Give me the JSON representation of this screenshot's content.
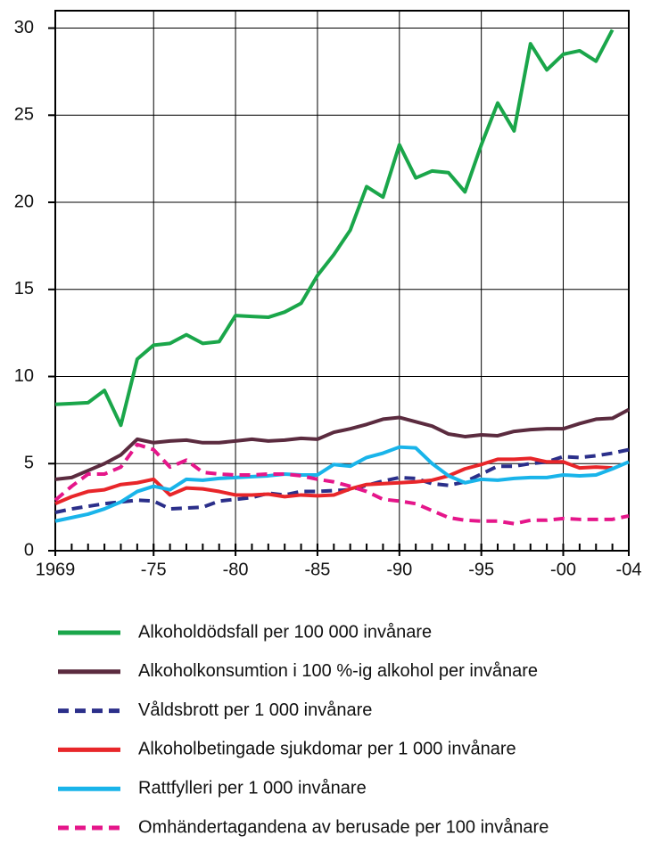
{
  "chart_data": {
    "type": "line",
    "x": [
      1969,
      1970,
      1971,
      1972,
      1973,
      1974,
      1975,
      1976,
      1977,
      1978,
      1979,
      1980,
      1981,
      1982,
      1983,
      1984,
      1985,
      1986,
      1987,
      1988,
      1989,
      1990,
      1991,
      1992,
      1993,
      1994,
      1995,
      1996,
      1997,
      1998,
      1999,
      2000,
      2001,
      2002,
      2003,
      2004
    ],
    "xlim": [
      1969,
      2004
    ],
    "xticks": [
      1969,
      {
        "value": 1975,
        "label": "-75"
      },
      {
        "value": 1980,
        "label": "-80"
      },
      {
        "value": 1985,
        "label": "-85"
      },
      {
        "value": 1990,
        "label": "-90"
      },
      {
        "value": 1995,
        "label": "-95"
      },
      {
        "value": 2000,
        "label": "-00"
      },
      {
        "value": 2004,
        "label": "-04"
      }
    ],
    "ylim": [
      0,
      31
    ],
    "yticks": [
      0,
      5,
      10,
      15,
      20,
      25,
      30
    ],
    "grid": true,
    "series": [
      {
        "name": "Alkoholdödsfall per 100 000 invånare",
        "color": "#1aa64a",
        "dashed": false,
        "values": [
          8.4,
          8.45,
          8.5,
          9.2,
          7.2,
          11.0,
          11.8,
          11.9,
          12.4,
          11.9,
          12.0,
          13.5,
          13.45,
          13.4,
          13.7,
          14.2,
          15.8,
          17.0,
          18.4,
          20.9,
          20.3,
          23.3,
          21.4,
          21.8,
          21.7,
          20.6,
          23.3,
          25.7,
          24.1,
          29.1,
          27.6,
          28.5,
          28.7,
          28.1,
          29.9,
          null
        ]
      },
      {
        "name": "Alkoholkonsumtion i 100 %-ig alkohol per invånare",
        "color": "#5b2b3f",
        "dashed": false,
        "values": [
          4.1,
          4.2,
          4.6,
          5.0,
          5.5,
          6.4,
          6.2,
          6.3,
          6.35,
          6.2,
          6.2,
          6.3,
          6.4,
          6.3,
          6.35,
          6.45,
          6.4,
          6.8,
          7.0,
          7.25,
          7.55,
          7.65,
          7.4,
          7.15,
          6.7,
          6.55,
          6.65,
          6.6,
          6.85,
          6.95,
          7.0,
          7.0,
          7.3,
          7.55,
          7.6,
          8.1
        ]
      },
      {
        "name": "Våldsbrott per 1 000 invånare",
        "color": "#2b2f8a",
        "dashed": true,
        "values": [
          2.2,
          2.4,
          2.55,
          2.7,
          2.8,
          2.9,
          2.85,
          2.4,
          2.45,
          2.5,
          2.85,
          2.95,
          3.05,
          3.3,
          3.2,
          3.4,
          3.4,
          3.45,
          3.5,
          3.75,
          4.0,
          4.2,
          4.15,
          3.85,
          3.75,
          3.95,
          4.4,
          4.85,
          4.85,
          5.0,
          5.1,
          5.4,
          5.35,
          5.45,
          5.6,
          5.8
        ]
      },
      {
        "name": "Alkoholbetingade sjukdomar per 1 000 invånare",
        "color": "#e8262a",
        "dashed": false,
        "values": [
          2.7,
          3.1,
          3.4,
          3.5,
          3.8,
          3.9,
          4.1,
          3.2,
          3.6,
          3.55,
          3.4,
          3.2,
          3.2,
          3.25,
          3.1,
          3.2,
          3.15,
          3.2,
          3.55,
          3.8,
          3.85,
          3.9,
          3.95,
          4.05,
          4.3,
          4.7,
          4.95,
          5.25,
          5.25,
          5.3,
          5.1,
          5.1,
          4.75,
          4.8,
          4.75,
          null
        ]
      },
      {
        "name": "Rattfylleri per 1 000 invånare",
        "color": "#19b4ea",
        "dashed": false,
        "values": [
          1.7,
          1.9,
          2.1,
          2.4,
          2.8,
          3.4,
          3.7,
          3.5,
          4.1,
          4.05,
          4.15,
          4.2,
          4.25,
          4.3,
          4.4,
          4.35,
          4.35,
          4.95,
          4.85,
          5.35,
          5.6,
          5.95,
          5.9,
          5.0,
          4.3,
          3.9,
          4.1,
          4.05,
          4.15,
          4.2,
          4.2,
          4.35,
          4.3,
          4.35,
          4.7,
          5.1
        ]
      },
      {
        "name": "Omhändertagandena av berusade per 100 invånare",
        "color": "#e5168a",
        "dashed": true,
        "values": [
          2.9,
          3.7,
          4.4,
          4.4,
          4.8,
          6.1,
          5.8,
          4.8,
          5.2,
          4.5,
          4.4,
          4.35,
          4.35,
          4.4,
          4.4,
          4.3,
          4.1,
          3.95,
          3.7,
          3.4,
          2.95,
          2.85,
          2.7,
          2.3,
          1.9,
          1.75,
          1.7,
          1.7,
          1.55,
          1.75,
          1.75,
          1.85,
          1.8,
          1.8,
          1.8,
          2.0
        ]
      }
    ]
  }
}
